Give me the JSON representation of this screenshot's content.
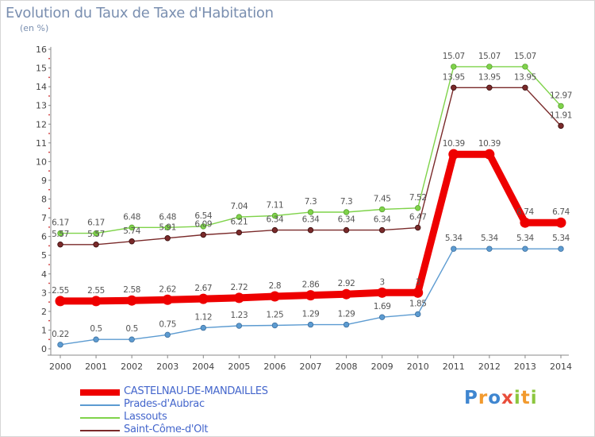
{
  "title": "Evolution du Taux de Taxe d'Habitation",
  "subtitle": "(en %)",
  "logo": {
    "text": "Proxiti",
    "letters": [
      {
        "ch": "P",
        "color": "#3f86d0"
      },
      {
        "ch": "r",
        "color": "#f29a2e"
      },
      {
        "ch": "o",
        "color": "#3f86d0"
      },
      {
        "ch": "x",
        "color": "#e94e3b"
      },
      {
        "ch": "i",
        "color": "#8cc63e"
      },
      {
        "ch": "t",
        "color": "#f29a2e"
      },
      {
        "ch": "i",
        "color": "#8cc63e"
      }
    ]
  },
  "chart_data": {
    "type": "line",
    "x": [
      "2000",
      "2001",
      "2002",
      "2003",
      "2004",
      "2005",
      "2006",
      "2007",
      "2008",
      "2009",
      "2010",
      "2011",
      "2012",
      "2013",
      "2014"
    ],
    "ylim": [
      0,
      16
    ],
    "yticks": [
      0,
      1,
      2,
      3,
      4,
      5,
      6,
      7,
      8,
      9,
      10,
      11,
      12,
      13,
      14,
      15,
      16
    ],
    "grid": false,
    "legend_position": "bottom-left",
    "series": [
      {
        "name": "CASTELNAU-DE-MANDAILLES",
        "color": "#ee0000",
        "values": [
          2.55,
          2.55,
          2.58,
          2.62,
          2.67,
          2.72,
          2.8,
          2.86,
          2.92,
          3,
          3,
          10.39,
          10.39,
          6.74,
          6.74
        ],
        "labels": [
          "2.55",
          "2.55",
          "2.58",
          "2.62",
          "2.67",
          "2.72",
          "2.8",
          "2.86",
          "2.92",
          "3",
          "3",
          "10.39",
          "10.39",
          "6.74",
          "6.74"
        ]
      },
      {
        "name": "Prades-d'Aubrac",
        "color": "#5c9bd1",
        "values": [
          0.22,
          0.5,
          0.5,
          0.75,
          1.12,
          1.23,
          1.25,
          1.29,
          1.29,
          1.69,
          1.85,
          5.34,
          5.34,
          5.34,
          5.34
        ],
        "labels": [
          "0.22",
          "0.5",
          "0.5",
          "0.75",
          "1.12",
          "1.23",
          "1.25",
          "1.29",
          "1.29",
          "1.69",
          "1.85",
          "5.34",
          "5.34",
          "5.34",
          "5.34"
        ]
      },
      {
        "name": "Lassouts",
        "color": "#7fd34a",
        "values": [
          6.17,
          6.17,
          6.48,
          6.48,
          6.54,
          7.04,
          7.11,
          7.3,
          7.3,
          7.45,
          7.52,
          15.07,
          15.07,
          15.07,
          12.97
        ],
        "labels": [
          "6.17",
          "6.17",
          "6.48",
          "6.48",
          "6.54",
          "7.04",
          "7.11",
          "7.3",
          "7.3",
          "7.45",
          "7.52",
          "15.07",
          "15.07",
          "15.07",
          "12.97"
        ]
      },
      {
        "name": "Saint-Côme-d'Olt",
        "color": "#7a2a2a",
        "values": [
          5.57,
          5.57,
          5.74,
          5.91,
          6.09,
          6.21,
          6.34,
          6.34,
          6.34,
          6.34,
          6.47,
          13.95,
          13.95,
          13.95,
          11.91
        ],
        "labels": [
          "5.57",
          "5.57",
          "5.74",
          "5.91",
          "6.09",
          "6.21",
          "6.34",
          "6.34",
          "6.34",
          "6.34",
          "6.47",
          "13.95",
          "13.95",
          "13.95",
          "11.91"
        ]
      }
    ]
  }
}
